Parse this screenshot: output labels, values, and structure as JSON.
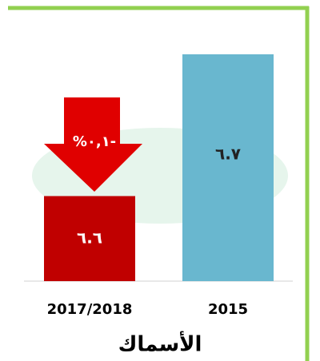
{
  "chart_data": {
    "type": "bar",
    "title": "الأسماك",
    "categories": [
      "2017/2018",
      "2015"
    ],
    "values": [
      6.6,
      6.7
    ],
    "value_labels": [
      "٦.٦",
      "٦.٧"
    ],
    "colors": [
      "#c00000",
      "#69b7cf"
    ],
    "ylim": [
      6.54,
      6.7
    ],
    "annotation": "%٠,١-"
  }
}
